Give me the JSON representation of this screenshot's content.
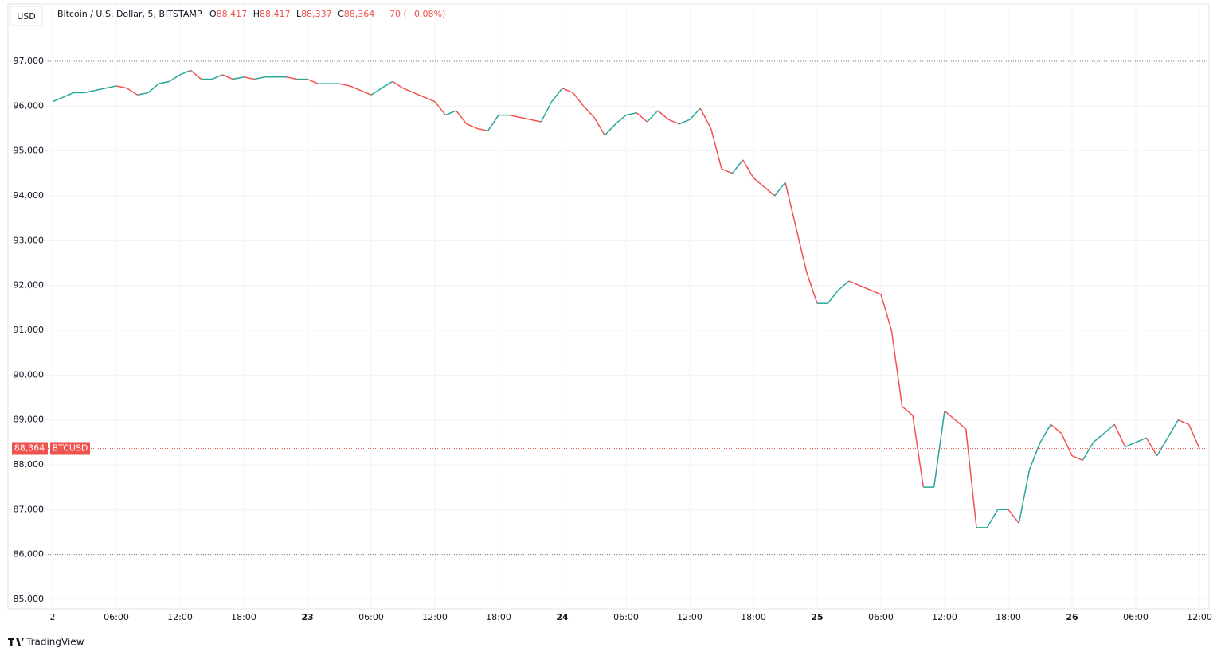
{
  "header": {
    "currency": "USD",
    "symbol": "Bitcoin / U.S. Dollar, 5, BITSTAMP",
    "o_key": "O",
    "open": "88,417",
    "h_key": "H",
    "high": "88,417",
    "l_key": "L",
    "low": "88,337",
    "c_key": "C",
    "close": "88,364",
    "change": "−70 (−0.08%)"
  },
  "footer": {
    "brand": "TradingView"
  },
  "chart_data": {
    "type": "line",
    "x": [
      0,
      1,
      2,
      3,
      4,
      5,
      6,
      7,
      8,
      9,
      10,
      11,
      12,
      13,
      14,
      15,
      16,
      17,
      18,
      19,
      20,
      21,
      22,
      23,
      24,
      25,
      26,
      27,
      28,
      29,
      30,
      31,
      32,
      33,
      34,
      35,
      36,
      37,
      38,
      39,
      40,
      41,
      42,
      43,
      44,
      45,
      46,
      47,
      48,
      49,
      50,
      51,
      52,
      53,
      54,
      55,
      56,
      57,
      58,
      59,
      60,
      61,
      62,
      63,
      64,
      65,
      66,
      67,
      68,
      69,
      70,
      71,
      72,
      73,
      74,
      75,
      76,
      77,
      78,
      79,
      80,
      81,
      82,
      83,
      84,
      85,
      86,
      87,
      88,
      89,
      90,
      91,
      92,
      93,
      94,
      95,
      96,
      97,
      98,
      99,
      100,
      101,
      102,
      103,
      104,
      105,
      106,
      107,
      108
    ],
    "series": [
      {
        "name": "BTCUSD",
        "up_color": "#26a69a",
        "down_color": "#ef5350",
        "values": [
          96100,
          96200,
          96300,
          96300,
          96350,
          96400,
          96450,
          96400,
          96250,
          96300,
          96500,
          96550,
          96700,
          96800,
          96600,
          96600,
          96700,
          96600,
          96650,
          96600,
          96650,
          96650,
          96650,
          96600,
          96600,
          96500,
          96500,
          96500,
          96450,
          96350,
          96250,
          96400,
          96550,
          96400,
          96300,
          96200,
          96100,
          95800,
          95900,
          95600,
          95500,
          95450,
          95800,
          95800,
          95750,
          95700,
          95650,
          96100,
          96400,
          96300,
          96000,
          95750,
          95350,
          95600,
          95800,
          95850,
          95650,
          95900,
          95700,
          95600,
          95700,
          95950,
          95500,
          94600,
          94500,
          94800,
          94400,
          94200,
          94000,
          94300,
          93300,
          92300,
          91600,
          91600,
          91900,
          92100,
          92000,
          91900,
          91800,
          91000,
          89300,
          89100,
          87500,
          87500,
          89200,
          89000,
          88800,
          86600,
          86600,
          87000,
          87000,
          86700,
          87900,
          88500,
          88900,
          88700,
          88200,
          88100,
          88500,
          88700,
          88900,
          88400,
          88500,
          88600,
          88200,
          88600,
          89000,
          88900,
          88364
        ]
      }
    ],
    "last_price": {
      "value": 88364,
      "label": "88,364"
    },
    "dotted_lines": [
      97000,
      86000
    ],
    "ylim": [
      84787,
      98278
    ],
    "yticks": [
      {
        "value": 85000,
        "label": "85,000"
      },
      {
        "value": 86000,
        "label": "86,000"
      },
      {
        "value": 87000,
        "label": "87,000"
      },
      {
        "value": 88000,
        "label": "88,000"
      },
      {
        "value": 89000,
        "label": "89,000"
      },
      {
        "value": 90000,
        "label": "90,000"
      },
      {
        "value": 91000,
        "label": "91,000"
      },
      {
        "value": 92000,
        "label": "92,000"
      },
      {
        "value": 93000,
        "label": "93,000"
      },
      {
        "value": 94000,
        "label": "94,000"
      },
      {
        "value": 95000,
        "label": "95,000"
      },
      {
        "value": 96000,
        "label": "96,000"
      },
      {
        "value": 97000,
        "label": "97,000"
      }
    ],
    "xlim": [
      -4.2,
      108.9
    ],
    "xticks": [
      {
        "value": 0,
        "label": "2"
      },
      {
        "value": 6,
        "label": "06:00"
      },
      {
        "value": 12,
        "label": "12:00"
      },
      {
        "value": 18,
        "label": "18:00"
      },
      {
        "value": 24,
        "label": "23"
      },
      {
        "value": 30,
        "label": "06:00"
      },
      {
        "value": 36,
        "label": "12:00"
      },
      {
        "value": 42,
        "label": "18:00"
      },
      {
        "value": 48,
        "label": "24"
      },
      {
        "value": 54,
        "label": "06:00"
      },
      {
        "value": 60,
        "label": "12:00"
      },
      {
        "value": 66,
        "label": "18:00"
      },
      {
        "value": 72,
        "label": "25"
      },
      {
        "value": 78,
        "label": "06:00"
      },
      {
        "value": 84,
        "label": "12:00"
      },
      {
        "value": 90,
        "label": "18:00"
      },
      {
        "value": 96,
        "label": "26"
      },
      {
        "value": 102,
        "label": "06:00"
      },
      {
        "value": 108,
        "label": "12:00"
      }
    ],
    "grid": true
  }
}
